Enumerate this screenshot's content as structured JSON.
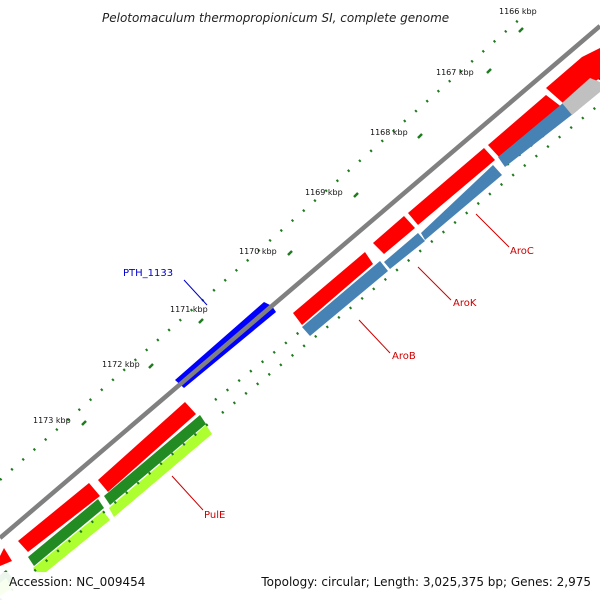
{
  "title": "Pelotomaculum thermopropionicum SI, complete genome",
  "footer": {
    "accession": "Accession: NC_009454",
    "summary": "Topology: circular; Length: 3,025,375 bp; Genes: 2,975"
  },
  "ticks": [
    "1166 kbp",
    "1167 kbp",
    "1168 kbp",
    "1169 kbp",
    "1170 kbp",
    "1171 kbp",
    "1172 kbp",
    "1173 kbp"
  ],
  "gene_labels": {
    "pth1133": "PTH_1133",
    "aroc": "AroC",
    "arok": "AroK",
    "arob": "AroB",
    "pule": "PulE"
  },
  "colors": {
    "backbone": "#808080",
    "forward_cds": "#ff0000",
    "reverse_cds": "#0000ff",
    "steel_blue": "#4682b4",
    "green": "#228b22",
    "lime": "#9acd32",
    "tick_dots": "#1e7b1e",
    "label_blue": "#0000cc",
    "label_red": "#cc0000"
  }
}
